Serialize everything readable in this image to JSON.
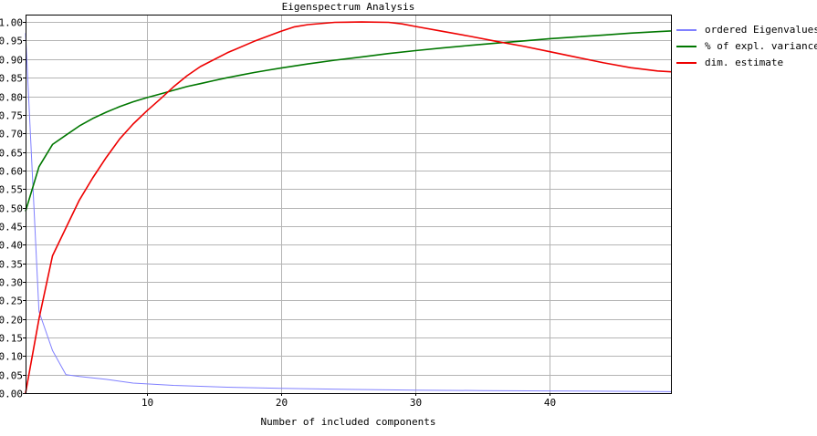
{
  "chart_data": {
    "type": "line",
    "title": "Eigenspectrum Analysis",
    "xlabel": "Number of included components",
    "ylabel": "",
    "xlim": [
      1,
      49
    ],
    "ylim": [
      0,
      1.02
    ],
    "x_ticks": [
      10,
      20,
      30,
      40
    ],
    "y_ticks": [
      0.0,
      0.05,
      0.1,
      0.15,
      0.2,
      0.25,
      0.3,
      0.35,
      0.4,
      0.45,
      0.5,
      0.55,
      0.6,
      0.65,
      0.7,
      0.75,
      0.8,
      0.85,
      0.9,
      0.95,
      1.0
    ],
    "grid": true,
    "legend_position": "right",
    "series": [
      {
        "name": "ordered Eigenvalues",
        "color": "#8080ff",
        "points": [
          [
            1,
            0.97
          ],
          [
            2,
            0.22
          ],
          [
            3,
            0.115
          ],
          [
            4,
            0.05
          ],
          [
            5,
            0.045
          ],
          [
            7,
            0.037
          ],
          [
            9,
            0.027
          ],
          [
            12,
            0.021
          ],
          [
            16,
            0.016
          ],
          [
            20,
            0.013
          ],
          [
            25,
            0.01
          ],
          [
            30,
            0.008
          ],
          [
            35,
            0.007
          ],
          [
            40,
            0.006
          ],
          [
            45,
            0.005
          ],
          [
            49,
            0.004
          ]
        ]
      },
      {
        "name": "% of expl. variance",
        "color": "#007700",
        "points": [
          [
            1,
            0.49
          ],
          [
            2,
            0.61
          ],
          [
            3,
            0.67
          ],
          [
            4,
            0.695
          ],
          [
            5,
            0.72
          ],
          [
            6,
            0.74
          ],
          [
            7,
            0.757
          ],
          [
            8,
            0.772
          ],
          [
            9,
            0.785
          ],
          [
            10,
            0.796
          ],
          [
            11,
            0.806
          ],
          [
            12,
            0.816
          ],
          [
            13,
            0.826
          ],
          [
            14,
            0.834
          ],
          [
            15,
            0.842
          ],
          [
            16,
            0.85
          ],
          [
            17,
            0.857
          ],
          [
            18,
            0.864
          ],
          [
            19,
            0.87
          ],
          [
            20,
            0.876
          ],
          [
            22,
            0.887
          ],
          [
            24,
            0.897
          ],
          [
            26,
            0.906
          ],
          [
            28,
            0.915
          ],
          [
            30,
            0.923
          ],
          [
            32,
            0.93
          ],
          [
            34,
            0.937
          ],
          [
            36,
            0.943
          ],
          [
            38,
            0.949
          ],
          [
            40,
            0.955
          ],
          [
            42,
            0.96
          ],
          [
            44,
            0.965
          ],
          [
            46,
            0.97
          ],
          [
            48,
            0.974
          ],
          [
            49,
            0.976
          ]
        ]
      },
      {
        "name": "dim. estimate",
        "color": "#ee0000",
        "points": [
          [
            1,
            0.0
          ],
          [
            2,
            0.2
          ],
          [
            3,
            0.37
          ],
          [
            4,
            0.445
          ],
          [
            5,
            0.52
          ],
          [
            6,
            0.58
          ],
          [
            7,
            0.635
          ],
          [
            8,
            0.685
          ],
          [
            9,
            0.725
          ],
          [
            10,
            0.76
          ],
          [
            11,
            0.792
          ],
          [
            12,
            0.825
          ],
          [
            13,
            0.855
          ],
          [
            14,
            0.88
          ],
          [
            16,
            0.917
          ],
          [
            18,
            0.948
          ],
          [
            20,
            0.975
          ],
          [
            21,
            0.987
          ],
          [
            22,
            0.993
          ],
          [
            24,
            0.999
          ],
          [
            26,
            1.0
          ],
          [
            28,
            0.999
          ],
          [
            29,
            0.995
          ],
          [
            30,
            0.988
          ],
          [
            32,
            0.975
          ],
          [
            34,
            0.962
          ],
          [
            36,
            0.948
          ],
          [
            38,
            0.935
          ],
          [
            40,
            0.92
          ],
          [
            42,
            0.905
          ],
          [
            44,
            0.89
          ],
          [
            46,
            0.877
          ],
          [
            48,
            0.868
          ],
          [
            49,
            0.866
          ]
        ]
      }
    ]
  }
}
